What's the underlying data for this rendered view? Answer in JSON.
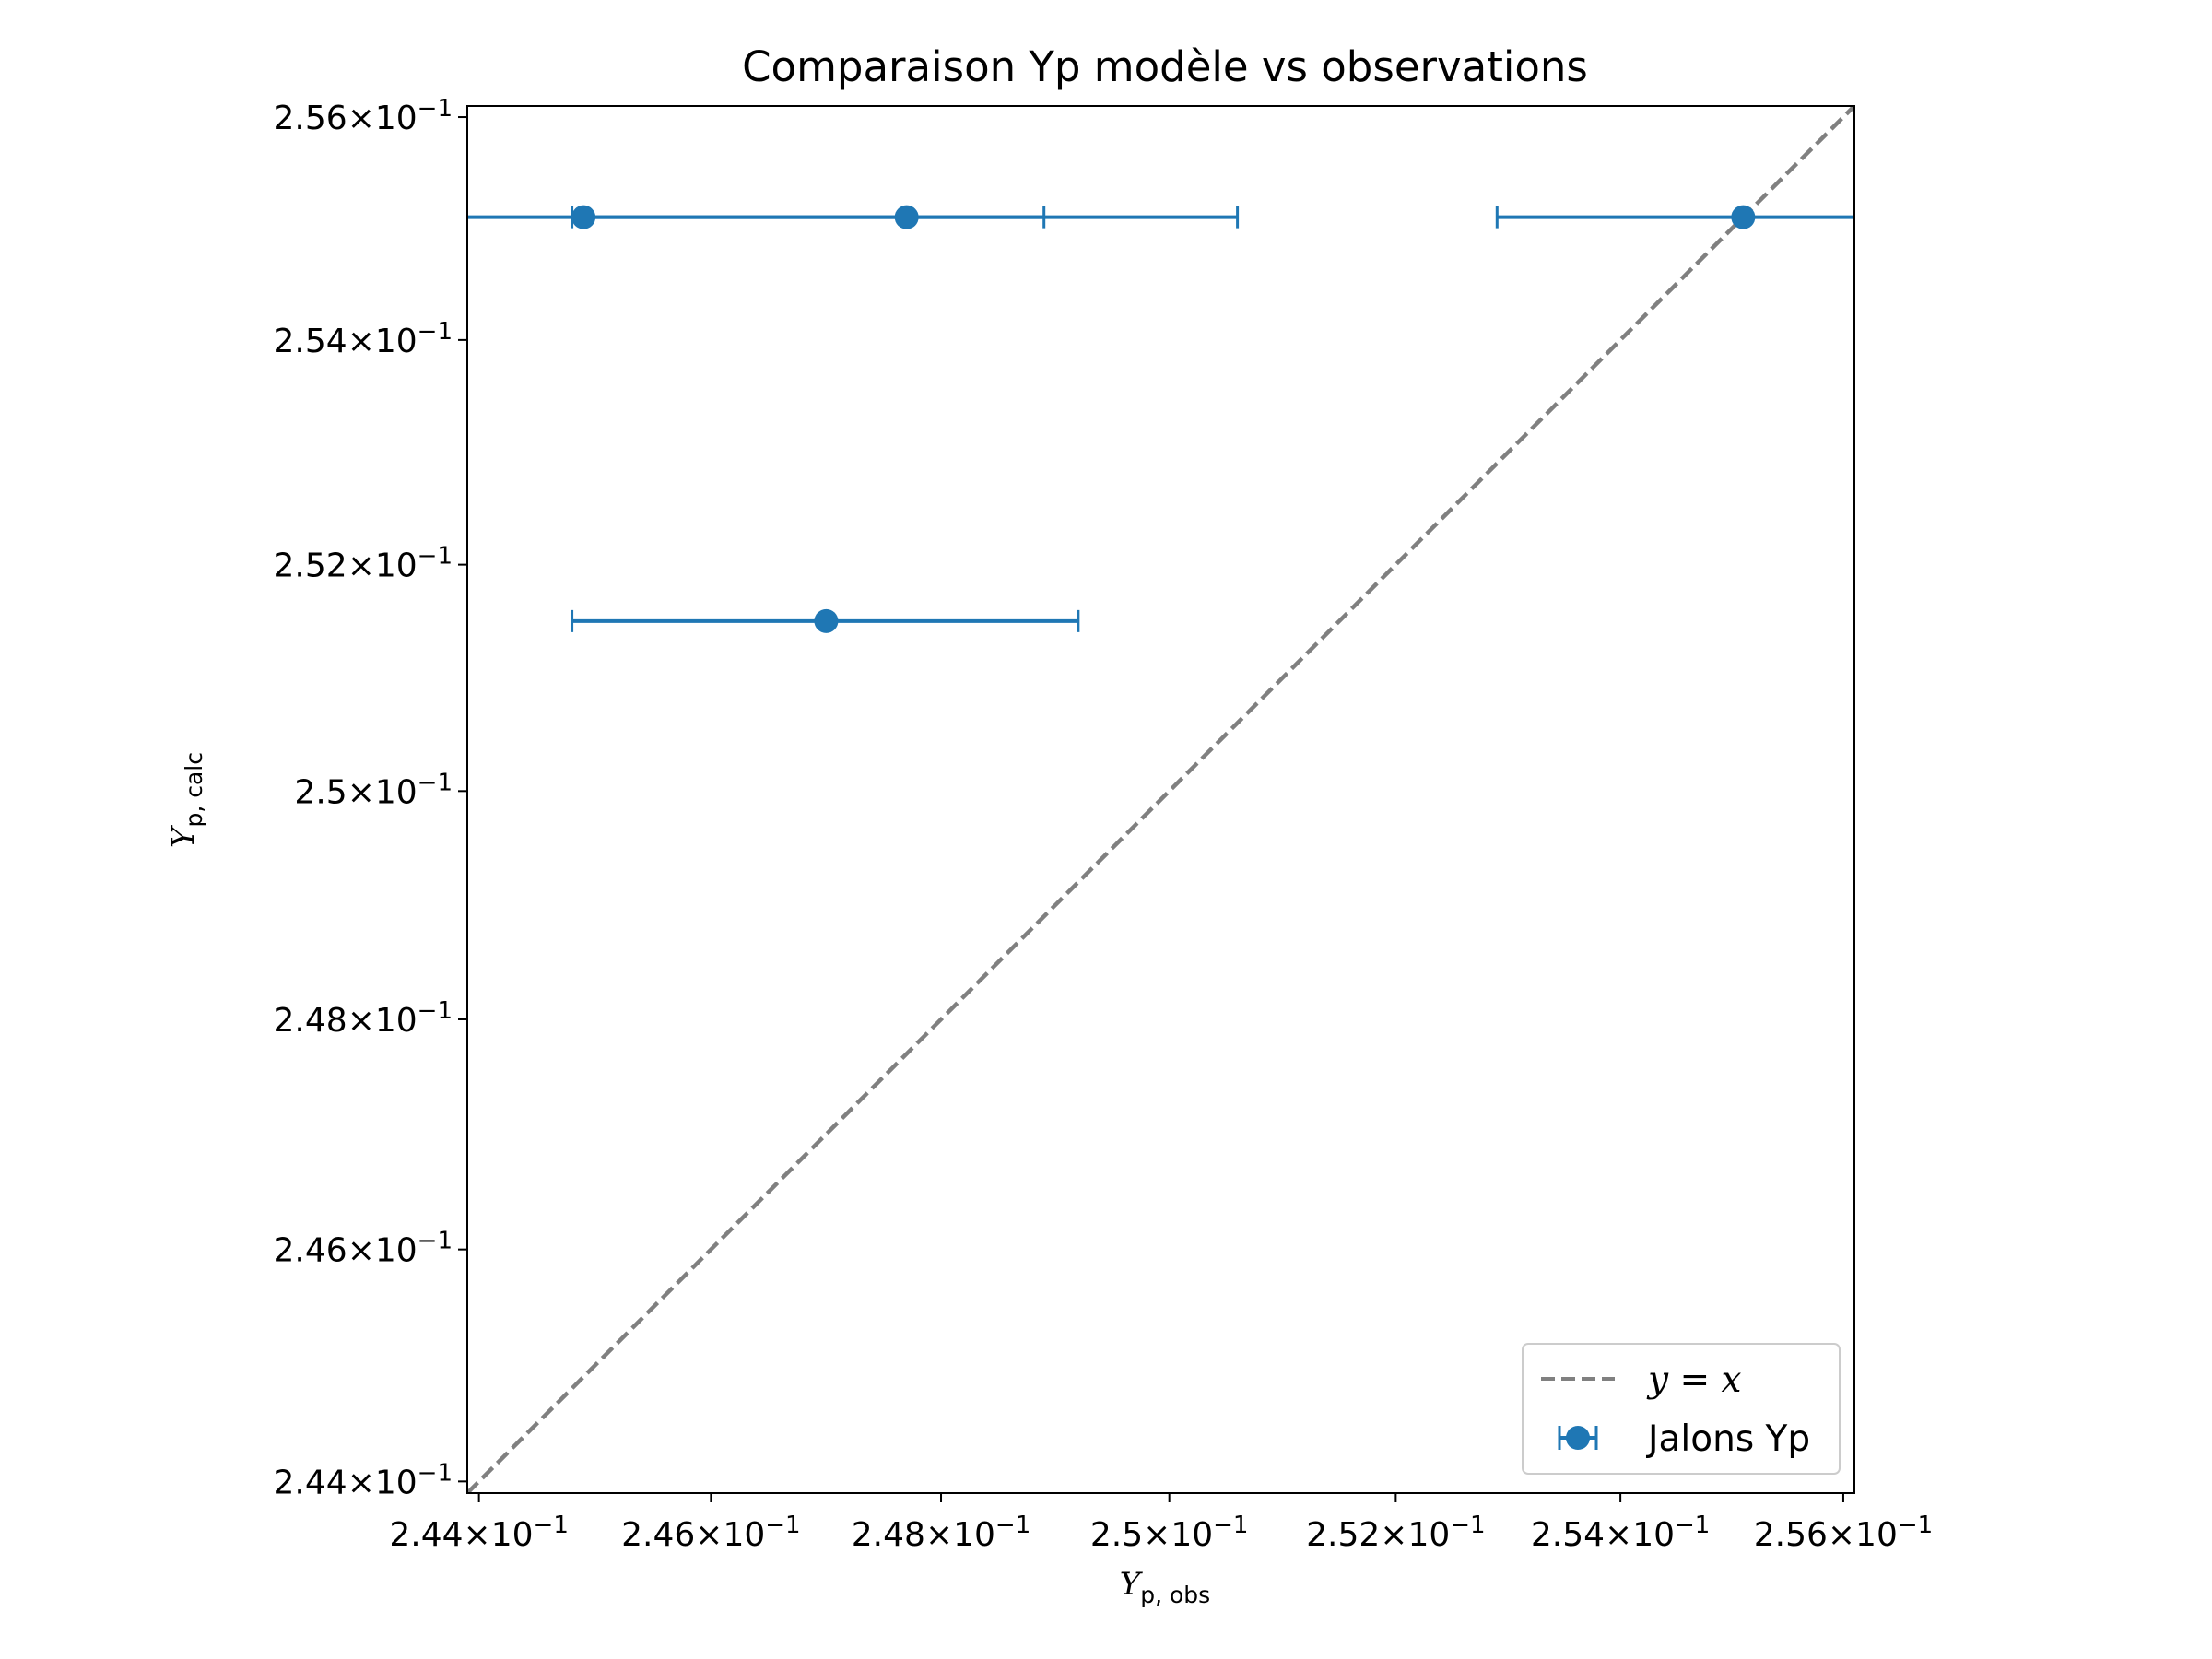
{
  "chart_data": {
    "type": "scatter",
    "title": "Comparaison Yp modèle vs observations",
    "xlabel": {
      "main": "Y",
      "sub": "p, obs"
    },
    "ylabel": {
      "main": "Y",
      "sub": "p, calc"
    },
    "xlim": [
      0.2439,
      0.2561
    ],
    "ylim": [
      0.2439,
      0.2561
    ],
    "scale": "log",
    "grid": false,
    "x_ticks": [
      {
        "value": 0.244,
        "mantissa": "2.44",
        "base": "10",
        "exp": "−1"
      },
      {
        "value": 0.246,
        "mantissa": "2.46",
        "base": "10",
        "exp": "−1"
      },
      {
        "value": 0.248,
        "mantissa": "2.48",
        "base": "10",
        "exp": "−1"
      },
      {
        "value": 0.25,
        "mantissa": "2.5",
        "base": "10",
        "exp": "−1"
      },
      {
        "value": 0.252,
        "mantissa": "2.52",
        "base": "10",
        "exp": "−1"
      },
      {
        "value": 0.254,
        "mantissa": "2.54",
        "base": "10",
        "exp": "−1"
      },
      {
        "value": 0.256,
        "mantissa": "2.56",
        "base": "10",
        "exp": "−1"
      }
    ],
    "y_ticks": [
      {
        "value": 0.244,
        "mantissa": "2.44",
        "base": "10",
        "exp": "−1"
      },
      {
        "value": 0.246,
        "mantissa": "2.46",
        "base": "10",
        "exp": "−1"
      },
      {
        "value": 0.248,
        "mantissa": "2.48",
        "base": "10",
        "exp": "−1"
      },
      {
        "value": 0.25,
        "mantissa": "2.5",
        "base": "10",
        "exp": "−1"
      },
      {
        "value": 0.252,
        "mantissa": "2.52",
        "base": "10",
        "exp": "−1"
      },
      {
        "value": 0.254,
        "mantissa": "2.54",
        "base": "10",
        "exp": "−1"
      },
      {
        "value": 0.256,
        "mantissa": "2.56",
        "base": "10",
        "exp": "−1"
      }
    ],
    "series": [
      {
        "name": "Jalons Yp",
        "color": "#1f77b4",
        "marker": "circle",
        "points": [
          {
            "x": 0.2449,
            "y": 0.2551,
            "xerr": 0.004
          },
          {
            "x": 0.2477,
            "y": 0.2551,
            "xerr": 0.0029
          },
          {
            "x": 0.2551,
            "y": 0.2551,
            "xerr": 0.0022
          },
          {
            "x": 0.247,
            "y": 0.2515,
            "xerr": 0.0022
          }
        ]
      }
    ],
    "reference_line": {
      "label": "y = x",
      "color": "#808080",
      "style": "dashed"
    },
    "legend": {
      "position": "lower-right",
      "entries": [
        {
          "label_lhs": "y",
          "label_op": " = ",
          "label_rhs": "x",
          "kind": "dashed-line"
        },
        {
          "label": "Jalons Yp",
          "kind": "errorbar-marker"
        }
      ]
    }
  }
}
